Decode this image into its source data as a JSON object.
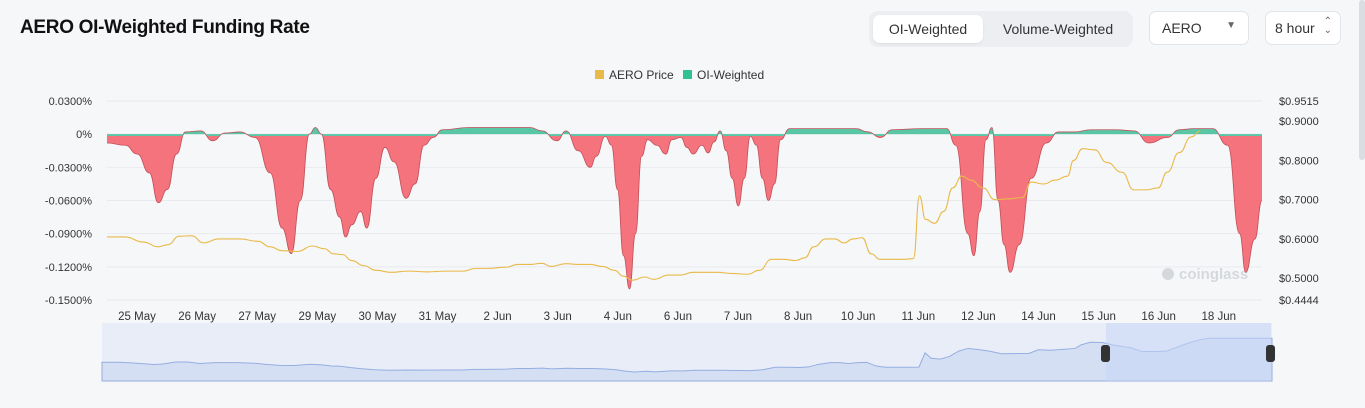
{
  "header": {
    "title": "AERO OI-Weighted Funding Rate",
    "tabs": [
      {
        "label": "OI-Weighted",
        "active": true
      },
      {
        "label": "Volume-Weighted",
        "active": false
      }
    ],
    "symbol_select": "AERO",
    "interval_select": "8 hour"
  },
  "colors": {
    "price": "#e9b949",
    "positive": "#3dbd97",
    "negative": "#f46b75",
    "navigator": "#dde4f5"
  },
  "watermark": "coinglass",
  "chart_data": {
    "type": "area",
    "legend": [
      {
        "name": "AERO Price",
        "color": "#e9b949"
      },
      {
        "name": "OI-Weighted",
        "color": "#2fc18f"
      }
    ],
    "legend_position": "top-center",
    "x_categories": [
      "25 May",
      "26 May",
      "27 May",
      "29 May",
      "30 May",
      "31 May",
      "2 Jun",
      "3 Jun",
      "4 Jun",
      "6 Jun",
      "7 Jun",
      "8 Jun",
      "10 Jun",
      "11 Jun",
      "12 Jun",
      "14 Jun",
      "15 Jun",
      "16 Jun",
      "18 Jun"
    ],
    "y_left": {
      "label": "",
      "ticks": [
        "0.0300%",
        "0%",
        "-0.0300%",
        "-0.0600%",
        "-0.0900%",
        "-0.1200%",
        "-0.1500%"
      ],
      "range": [
        -0.15,
        0.03
      ]
    },
    "y_right": {
      "label": "",
      "ticks": [
        "$0.9515",
        "$0.9000",
        "$0.8000",
        "$0.7000",
        "$0.6000",
        "$0.5000",
        "$0.4444"
      ],
      "range": [
        0.4444,
        0.9515
      ]
    },
    "series": [
      {
        "name": "OI-Weighted",
        "points": [
          [
            0,
            -0.008
          ],
          [
            0.3,
            -0.01
          ],
          [
            0.5,
            -0.018
          ],
          [
            0.7,
            -0.035
          ],
          [
            0.85,
            -0.062
          ],
          [
            1.0,
            -0.05
          ],
          [
            1.15,
            -0.018
          ],
          [
            1.3,
            0.002
          ],
          [
            1.55,
            0.003
          ],
          [
            1.75,
            -0.006
          ],
          [
            1.95,
            0.001
          ],
          [
            2.2,
            0.002
          ],
          [
            2.45,
            -0.003
          ],
          [
            2.7,
            -0.035
          ],
          [
            2.9,
            -0.085
          ],
          [
            3.05,
            -0.108
          ],
          [
            3.2,
            -0.06
          ],
          [
            3.35,
            0.0
          ],
          [
            3.45,
            0.006
          ],
          [
            3.55,
            0.0
          ],
          [
            3.7,
            -0.05
          ],
          [
            3.85,
            -0.075
          ],
          [
            3.95,
            -0.093
          ],
          [
            4.05,
            -0.082
          ],
          [
            4.2,
            -0.07
          ],
          [
            4.3,
            -0.085
          ],
          [
            4.45,
            -0.04
          ],
          [
            4.6,
            -0.012
          ],
          [
            4.75,
            -0.025
          ],
          [
            4.95,
            -0.058
          ],
          [
            5.1,
            -0.045
          ],
          [
            5.25,
            -0.01
          ],
          [
            5.4,
            -0.003
          ],
          [
            5.55,
            0.004
          ],
          [
            6.0,
            0.006
          ],
          [
            6.5,
            0.006
          ],
          [
            7.0,
            0.006
          ],
          [
            7.2,
            0.003
          ],
          [
            7.45,
            -0.006
          ],
          [
            7.6,
            0.003
          ],
          [
            7.8,
            -0.015
          ],
          [
            8.0,
            -0.03
          ],
          [
            8.1,
            -0.02
          ],
          [
            8.25,
            -0.002
          ],
          [
            8.35,
            -0.01
          ],
          [
            8.45,
            -0.05
          ],
          [
            8.55,
            -0.11
          ],
          [
            8.65,
            -0.14
          ],
          [
            8.75,
            -0.09
          ],
          [
            8.85,
            -0.02
          ],
          [
            8.95,
            -0.005
          ],
          [
            9.1,
            -0.01
          ],
          [
            9.25,
            -0.018
          ],
          [
            9.35,
            -0.005
          ],
          [
            9.5,
            -0.003
          ],
          [
            9.6,
            -0.012
          ],
          [
            9.7,
            -0.018
          ],
          [
            9.85,
            -0.01
          ],
          [
            9.95,
            -0.017
          ],
          [
            10.05,
            -0.007
          ],
          [
            10.15,
            0.003
          ],
          [
            10.25,
            -0.015
          ],
          [
            10.35,
            -0.04
          ],
          [
            10.45,
            -0.065
          ],
          [
            10.55,
            -0.04
          ],
          [
            10.65,
            -0.002
          ],
          [
            10.75,
            -0.01
          ],
          [
            10.85,
            -0.04
          ],
          [
            10.95,
            -0.06
          ],
          [
            11.05,
            -0.045
          ],
          [
            11.15,
            -0.005
          ],
          [
            11.3,
            0.005
          ],
          [
            12.0,
            0.005
          ],
          [
            12.4,
            0.005
          ],
          [
            12.6,
            0.002
          ],
          [
            12.8,
            -0.003
          ],
          [
            13.0,
            0.004
          ],
          [
            13.5,
            0.005
          ],
          [
            13.9,
            0.005
          ],
          [
            14.05,
            -0.01
          ],
          [
            14.25,
            -0.09
          ],
          [
            14.35,
            -0.11
          ],
          [
            14.45,
            -0.07
          ],
          [
            14.55,
            -0.005
          ],
          [
            14.65,
            0.006
          ],
          [
            14.75,
            -0.06
          ],
          [
            14.85,
            -0.1
          ],
          [
            14.95,
            -0.125
          ],
          [
            15.1,
            -0.1
          ],
          [
            15.3,
            -0.04
          ],
          [
            15.55,
            -0.008
          ],
          [
            15.75,
            0.002
          ],
          [
            16.0,
            0.002
          ],
          [
            16.3,
            0.004
          ],
          [
            16.7,
            0.004
          ],
          [
            17.0,
            0.003
          ],
          [
            17.25,
            -0.008
          ],
          [
            17.55,
            -0.003
          ],
          [
            17.75,
            0.004
          ],
          [
            18.0,
            0.005
          ],
          [
            18.3,
            0.005
          ],
          [
            18.55,
            -0.01
          ],
          [
            18.75,
            -0.09
          ],
          [
            18.85,
            -0.125
          ],
          [
            19.0,
            -0.095
          ],
          [
            19.12,
            -0.06
          ]
        ]
      },
      {
        "name": "AERO Price",
        "points": [
          [
            0,
            0.605
          ],
          [
            0.3,
            0.605
          ],
          [
            0.6,
            0.592
          ],
          [
            0.85,
            0.58
          ],
          [
            1.0,
            0.585
          ],
          [
            1.2,
            0.607
          ],
          [
            1.4,
            0.608
          ],
          [
            1.6,
            0.59
          ],
          [
            1.85,
            0.6
          ],
          [
            2.2,
            0.6
          ],
          [
            2.5,
            0.594
          ],
          [
            2.7,
            0.58
          ],
          [
            2.9,
            0.57
          ],
          [
            3.15,
            0.568
          ],
          [
            3.4,
            0.582
          ],
          [
            3.6,
            0.575
          ],
          [
            3.75,
            0.562
          ],
          [
            3.9,
            0.56
          ],
          [
            4.05,
            0.545
          ],
          [
            4.25,
            0.532
          ],
          [
            4.45,
            0.52
          ],
          [
            4.7,
            0.515
          ],
          [
            5.0,
            0.518
          ],
          [
            5.3,
            0.516
          ],
          [
            5.6,
            0.518
          ],
          [
            5.9,
            0.518
          ],
          [
            6.1,
            0.525
          ],
          [
            6.3,
            0.525
          ],
          [
            6.6,
            0.528
          ],
          [
            6.8,
            0.535
          ],
          [
            7.0,
            0.535
          ],
          [
            7.2,
            0.538
          ],
          [
            7.35,
            0.53
          ],
          [
            7.6,
            0.537
          ],
          [
            7.8,
            0.535
          ],
          [
            8.0,
            0.535
          ],
          [
            8.2,
            0.53
          ],
          [
            8.4,
            0.52
          ],
          [
            8.55,
            0.505
          ],
          [
            8.7,
            0.495
          ],
          [
            8.9,
            0.503
          ],
          [
            9.05,
            0.497
          ],
          [
            9.3,
            0.508
          ],
          [
            9.5,
            0.508
          ],
          [
            9.7,
            0.515
          ],
          [
            9.9,
            0.515
          ],
          [
            10.1,
            0.515
          ],
          [
            10.35,
            0.512
          ],
          [
            10.6,
            0.51
          ],
          [
            10.8,
            0.52
          ],
          [
            11.0,
            0.548
          ],
          [
            11.2,
            0.548
          ],
          [
            11.4,
            0.545
          ],
          [
            11.55,
            0.552
          ],
          [
            11.7,
            0.58
          ],
          [
            11.9,
            0.6
          ],
          [
            12.05,
            0.6
          ],
          [
            12.2,
            0.59
          ],
          [
            12.35,
            0.6
          ],
          [
            12.5,
            0.603
          ],
          [
            12.65,
            0.562
          ],
          [
            12.8,
            0.548
          ],
          [
            13.0,
            0.548
          ],
          [
            13.2,
            0.548
          ],
          [
            13.35,
            0.55
          ],
          [
            13.45,
            0.71
          ],
          [
            13.55,
            0.65
          ],
          [
            13.7,
            0.64
          ],
          [
            13.85,
            0.67
          ],
          [
            14.0,
            0.73
          ],
          [
            14.15,
            0.76
          ],
          [
            14.3,
            0.75
          ],
          [
            14.5,
            0.73
          ],
          [
            14.7,
            0.7
          ],
          [
            14.9,
            0.702
          ],
          [
            15.15,
            0.705
          ],
          [
            15.3,
            0.745
          ],
          [
            15.5,
            0.74
          ],
          [
            15.7,
            0.75
          ],
          [
            15.9,
            0.76
          ],
          [
            16.0,
            0.8
          ],
          [
            16.15,
            0.83
          ],
          [
            16.35,
            0.827
          ],
          [
            16.55,
            0.795
          ],
          [
            16.8,
            0.77
          ],
          [
            17.0,
            0.725
          ],
          [
            17.2,
            0.725
          ],
          [
            17.4,
            0.73
          ],
          [
            17.55,
            0.77
          ],
          [
            17.75,
            0.82
          ],
          [
            17.95,
            0.86
          ],
          [
            18.1,
            0.875
          ]
        ]
      }
    ]
  }
}
